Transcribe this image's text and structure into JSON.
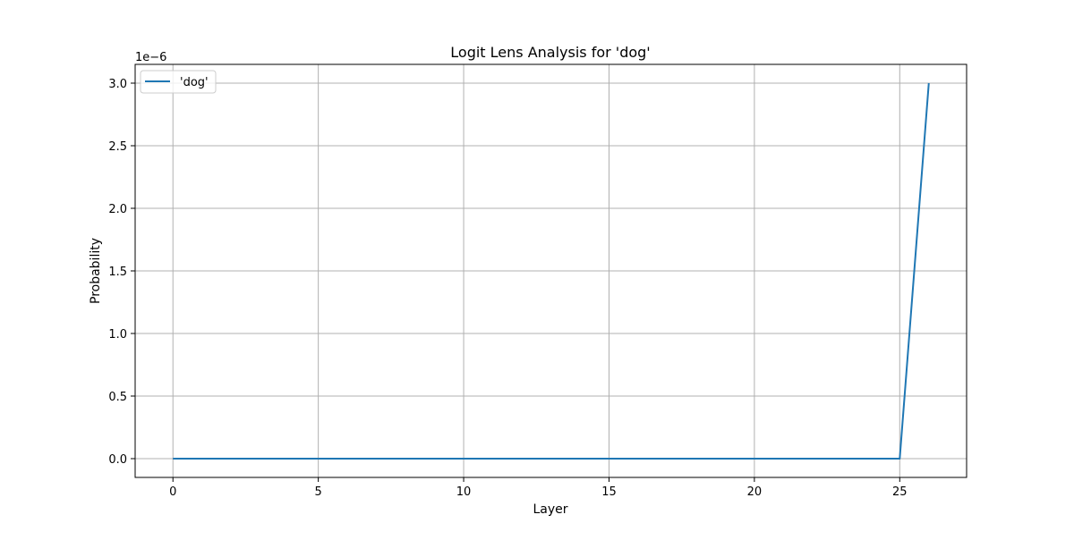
{
  "chart_data": {
    "type": "line",
    "title": "Logit Lens Analysis for 'dog'",
    "xlabel": "Layer",
    "ylabel": "Probability",
    "y_offset_label": "1e−6",
    "xlim": [
      -1.3,
      27.3
    ],
    "ylim": [
      -1.5e-07,
      3.15e-06
    ],
    "xticks": [
      0,
      5,
      10,
      15,
      20,
      25
    ],
    "xtick_labels": [
      "0",
      "5",
      "10",
      "15",
      "20",
      "25"
    ],
    "yticks": [
      0,
      5e-07,
      1e-06,
      1.5e-06,
      2e-06,
      2.5e-06,
      3e-06
    ],
    "ytick_labels": [
      "0.0",
      "0.5",
      "1.0",
      "1.5",
      "2.0",
      "2.5",
      "3.0"
    ],
    "grid": true,
    "legend_position": "top-left",
    "series": [
      {
        "name": "'dog'",
        "color": "#1f77b4",
        "x": [
          0,
          1,
          2,
          3,
          4,
          5,
          6,
          7,
          8,
          9,
          10,
          11,
          12,
          13,
          14,
          15,
          16,
          17,
          18,
          19,
          20,
          21,
          22,
          23,
          24,
          25,
          26
        ],
        "y": [
          0,
          0,
          0,
          0,
          0,
          0,
          0,
          0,
          0,
          0,
          0,
          0,
          0,
          0,
          0,
          0,
          0,
          0,
          0,
          0,
          0,
          0,
          0,
          0,
          0,
          0,
          3e-06
        ]
      }
    ]
  }
}
